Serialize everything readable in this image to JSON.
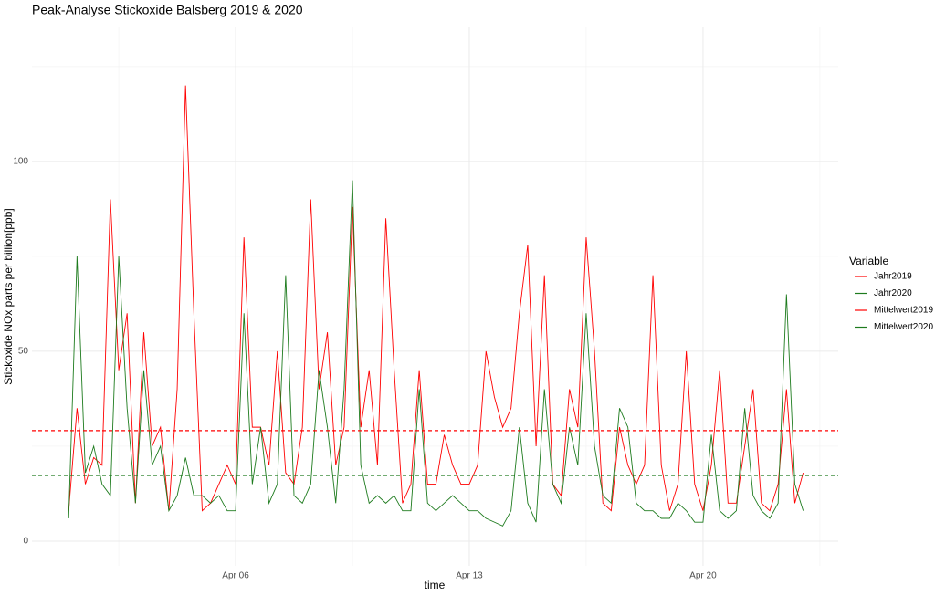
{
  "chart_data": {
    "type": "line",
    "title": "Peak-Analyse Stickoxide Balsberg 2019 & 2020",
    "x_label": "time",
    "y_label": "Stickoxide NOx parts per billion[ppb]",
    "legend_title": "Variable",
    "x": [
      1,
      1.25,
      1.5,
      1.75,
      2,
      2.25,
      2.5,
      2.75,
      3,
      3.25,
      3.5,
      3.75,
      4,
      4.25,
      4.5,
      4.75,
      5,
      5.25,
      5.5,
      5.75,
      6,
      6.25,
      6.5,
      6.75,
      7,
      7.25,
      7.5,
      7.75,
      8,
      8.25,
      8.5,
      8.75,
      9,
      9.25,
      9.5,
      9.75,
      10,
      10.25,
      10.5,
      10.75,
      11,
      11.25,
      11.5,
      11.75,
      12,
      12.25,
      12.5,
      12.75,
      13,
      13.25,
      13.5,
      13.75,
      14,
      14.25,
      14.5,
      14.75,
      15,
      15.25,
      15.5,
      15.75,
      16,
      16.25,
      16.5,
      16.75,
      17,
      17.25,
      17.5,
      17.75,
      18,
      18.25,
      18.5,
      18.75,
      19,
      19.25,
      19.5,
      19.75,
      20,
      20.25,
      20.5,
      20.75,
      21,
      21.25,
      21.5,
      21.75,
      22,
      22.25,
      22.5,
      22.75,
      23
    ],
    "series": [
      {
        "name": "Jahr2019",
        "color": "#ff0000",
        "values": [
          8,
          35,
          15,
          22,
          20,
          90,
          45,
          60,
          10,
          55,
          25,
          30,
          8,
          40,
          120,
          60,
          8,
          10,
          15,
          20,
          15,
          80,
          30,
          30,
          20,
          50,
          18,
          15,
          30,
          90,
          40,
          55,
          20,
          30,
          88,
          30,
          45,
          20,
          85,
          45,
          10,
          15,
          45,
          15,
          15,
          28,
          20,
          15,
          15,
          20,
          50,
          38,
          30,
          35,
          60,
          78,
          25,
          70,
          15,
          12,
          40,
          30,
          80,
          50,
          10,
          8,
          30,
          20,
          15,
          20,
          70,
          20,
          8,
          15,
          50,
          15,
          8,
          20,
          45,
          10,
          10,
          25,
          40,
          10,
          8,
          15,
          40,
          10,
          18
        ]
      },
      {
        "name": "Jahr2020",
        "color": "#1e7b1e",
        "values": [
          6,
          75,
          18,
          25,
          15,
          12,
          75,
          35,
          10,
          45,
          20,
          25,
          8,
          12,
          22,
          12,
          12,
          10,
          12,
          8,
          8,
          60,
          15,
          30,
          10,
          15,
          70,
          12,
          10,
          15,
          45,
          30,
          10,
          40,
          95,
          20,
          10,
          12,
          10,
          12,
          8,
          8,
          40,
          10,
          8,
          10,
          12,
          10,
          8,
          8,
          6,
          5,
          4,
          8,
          30,
          10,
          5,
          40,
          15,
          10,
          30,
          20,
          60,
          25,
          12,
          10,
          35,
          30,
          10,
          8,
          8,
          6,
          6,
          10,
          8,
          5,
          5,
          28,
          8,
          6,
          8,
          35,
          12,
          8,
          6,
          10,
          65,
          15,
          8
        ]
      },
      {
        "name": "Mittelwert2019",
        "color": "#ff0000",
        "value": 29.1,
        "dash": true
      },
      {
        "name": "Mittelwert2020",
        "color": "#1e7b1e",
        "value": 17.3,
        "dash": true
      }
    ],
    "xlim": [
      -0.1,
      24.05
    ],
    "xticks": [
      {
        "value": 6,
        "label": "Apr 06"
      },
      {
        "value": 13,
        "label": "Apr 13"
      },
      {
        "value": 20,
        "label": "Apr 20"
      }
    ],
    "ylim": [
      -6.5,
      135.3
    ],
    "yticks": [
      0,
      50,
      100
    ],
    "grid": true,
    "legend": "right"
  }
}
